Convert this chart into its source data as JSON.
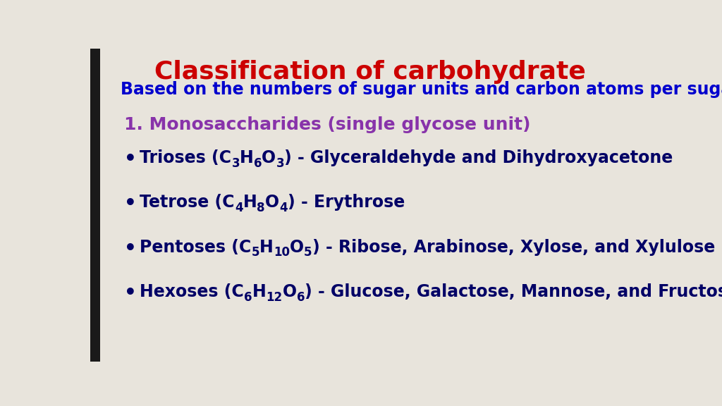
{
  "title": "Classification of carbohydrate",
  "title_color": "#cc0000",
  "subtitle": "Based on the numbers of sugar units and carbon atoms per sugar unit",
  "subtitle_color": "#0000cd",
  "section_label": "1. Monosaccharides (single glycose unit)",
  "section_color": "#8833aa",
  "bullets": [
    {
      "prefix": "Trioses (C",
      "sub1": "3",
      "mid1": "H",
      "sub2": "6",
      "mid2": "O",
      "sub3": "3",
      "suffix": ") - Glyceraldehyde and Dihydroxyacetone"
    },
    {
      "prefix": "Tetrose (C",
      "sub1": "4",
      "mid1": "H",
      "sub2": "8",
      "mid2": "O",
      "sub3": "4",
      "suffix": ") - Erythrose"
    },
    {
      "prefix": "Pentoses (C",
      "sub1": "5",
      "mid1": "H",
      "sub2": "10",
      "mid2": "O",
      "sub3": "5",
      "suffix": ") - Ribose, Arabinose, Xylose, and Xylulose"
    },
    {
      "prefix": "Hexoses (C",
      "sub1": "6",
      "mid1": "H",
      "sub2": "12",
      "mid2": "O",
      "sub3": "6",
      "suffix": ") - Glucose, Galactose, Mannose, and Fructose"
    }
  ],
  "bullet_color": "#000066",
  "background_color": "#e8e4dc",
  "left_bar_color": "#1a1a1a",
  "title_fontsize": 26,
  "subtitle_fontsize": 17,
  "section_fontsize": 18,
  "bullet_fontsize": 17,
  "sub_fontsize": 12
}
